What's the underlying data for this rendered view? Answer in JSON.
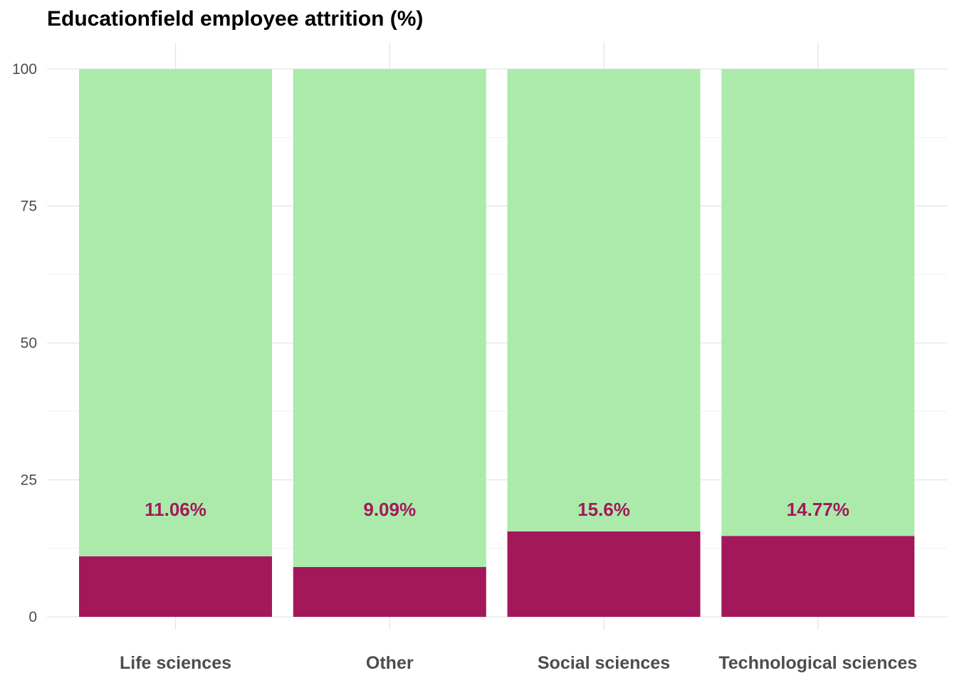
{
  "chart_data": {
    "type": "bar",
    "stacked": true,
    "title": "Educationfield employee attrition (%)",
    "xlabel": "",
    "ylabel": "",
    "ylim": [
      0,
      100
    ],
    "yticks": [
      0,
      25,
      50,
      75,
      100
    ],
    "grid": true,
    "legend": "none",
    "categories": [
      "Life sciences",
      "Other",
      "Social sciences",
      "Technological sciences"
    ],
    "series": [
      {
        "key": "attrition",
        "values": [
          11.06,
          9.09,
          15.6,
          14.77
        ],
        "color": "#A3185A"
      },
      {
        "key": "retained",
        "values": [
          88.94,
          90.91,
          84.4,
          85.23
        ],
        "color": "#ABEAAB"
      }
    ],
    "data_labels": [
      "11.06%",
      "9.09%",
      "15.6%",
      "14.77%"
    ],
    "data_label_color": "#A3185A"
  }
}
